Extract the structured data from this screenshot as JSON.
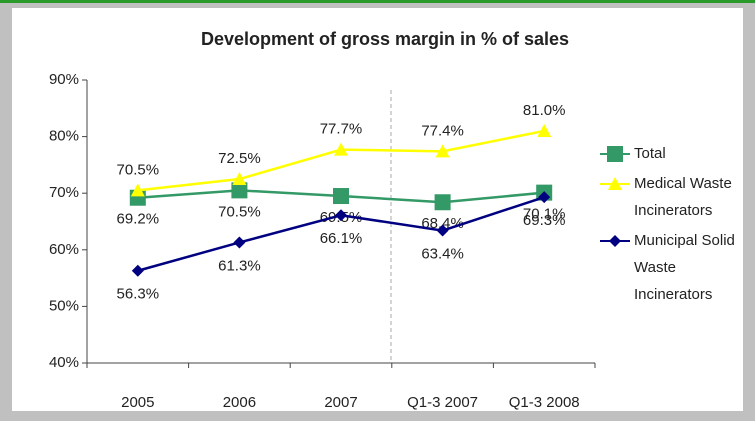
{
  "chart_data": {
    "type": "line",
    "title": "Development of gross margin in % of sales",
    "categories": [
      "2005",
      "2006",
      "2007",
      "Q1-3 2007",
      "Q1-3 2008"
    ],
    "series": [
      {
        "name": "Total",
        "color": "#339966",
        "marker": "square",
        "values": [
          69.2,
          70.5,
          69.5,
          68.4,
          70.1
        ],
        "value_labels": [
          "69.2%",
          "70.5%",
          "69.5%",
          "68.4%",
          "70.1%"
        ]
      },
      {
        "name": "Medical Waste Incinerators",
        "color": "#ffff00",
        "marker": "triangle",
        "values": [
          70.5,
          72.5,
          77.7,
          77.4,
          81.0
        ],
        "value_labels": [
          "70.5%",
          "72.5%",
          "77.7%",
          "77.4%",
          "81.0%"
        ]
      },
      {
        "name": "Municipal Solid Waste Incinerators",
        "color": "#000080",
        "marker": "diamond",
        "values": [
          56.3,
          61.3,
          66.1,
          63.4,
          69.3
        ],
        "value_labels": [
          "56.3%",
          "61.3%",
          "66.1%",
          "63.4%",
          "69.3%"
        ]
      }
    ],
    "ylim": [
      40,
      90
    ],
    "yticks": [
      {
        "value": 40,
        "label": "40%"
      },
      {
        "value": 50,
        "label": "50%"
      },
      {
        "value": 60,
        "label": "60%"
      },
      {
        "value": 70,
        "label": "70%"
      },
      {
        "value": 80,
        "label": "80%"
      },
      {
        "value": 90,
        "label": "90%"
      }
    ],
    "grid": false,
    "legend": "right"
  }
}
